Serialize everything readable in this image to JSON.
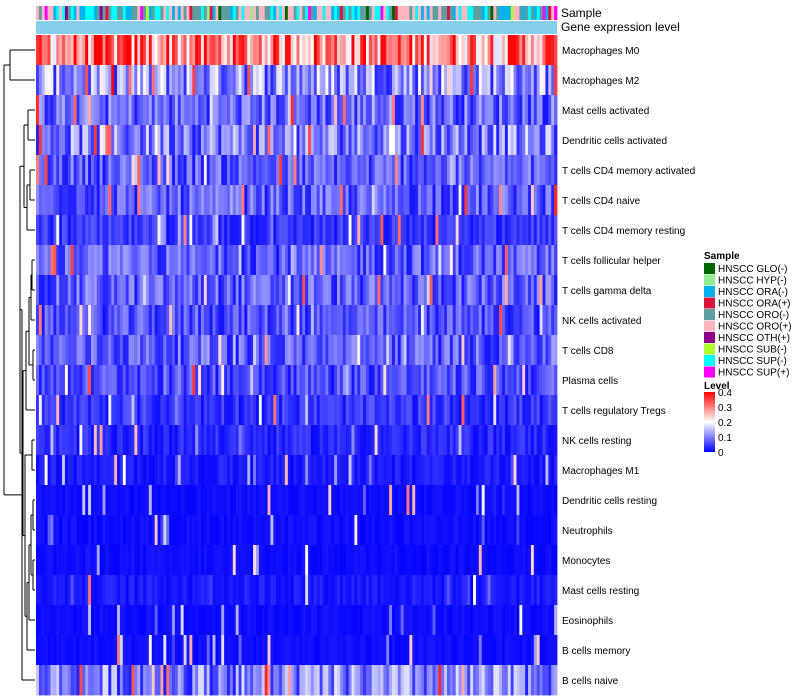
{
  "chart_data": {
    "type": "heatmap",
    "title": "",
    "annotation_tracks": [
      "Sample",
      "Gene expression level"
    ],
    "rows": [
      "Macrophages M0",
      "Macrophages M2",
      "Mast cells activated",
      "Dendritic cells activated",
      "T cells CD4 memory activated",
      "T cells CD4 naive",
      "T cells CD4 memory resting",
      "T cells follicular helper",
      "T cells gamma delta",
      "NK cells activated",
      "T cells CD8",
      "Plasma cells",
      "T cells regulatory  Tregs",
      "NK cells resting",
      "Macrophages M1",
      "Dendritic cells resting",
      "Neutrophils",
      "Monocytes",
      "Mast cells resting",
      "Eosinophils",
      "B cells memory",
      "B cells naive"
    ],
    "row_mean_level": [
      0.3,
      0.12,
      0.08,
      0.1,
      0.07,
      0.07,
      0.04,
      0.07,
      0.07,
      0.06,
      0.07,
      0.06,
      0.04,
      0.03,
      0.02,
      0.01,
      0.01,
      0.01,
      0.02,
      0.01,
      0.01,
      0.1
    ],
    "n_samples": 180,
    "sample_legend": {
      "title": "Sample",
      "items": [
        {
          "label": "HNSCC GLO(-)",
          "color": "#006400"
        },
        {
          "label": "HNSCC HYP(-)",
          "color": "#90EE90"
        },
        {
          "label": "HNSCC ORA(-)",
          "color": "#00B2EE"
        },
        {
          "label": "HNSCC ORA(+)",
          "color": "#DC143C"
        },
        {
          "label": "HNSCC ORO(-)",
          "color": "#5F9EA0"
        },
        {
          "label": "HNSCC ORO(+)",
          "color": "#FFB6C1"
        },
        {
          "label": "HNSCC OTH(+)",
          "color": "#8B008B"
        },
        {
          "label": "HNSCC SUB(-)",
          "color": "#ADFF2F"
        },
        {
          "label": "HNSCC SUP(-)",
          "color": "#00FFFF"
        },
        {
          "label": "HNSCC SUP(+)",
          "color": "#FF00FF"
        }
      ]
    },
    "level_legend": {
      "title": "Level",
      "ticks": [
        "0.4",
        "0.3",
        "0.2",
        "0.1",
        "0"
      ],
      "tick_values": [
        0.4,
        0.3,
        0.2,
        0.1,
        0
      ],
      "range": [
        0,
        0.4
      ],
      "colors": [
        "#0000FF",
        "#FFFFFF",
        "#FF0000"
      ]
    },
    "expression_bar_color": "#87CEEB"
  }
}
